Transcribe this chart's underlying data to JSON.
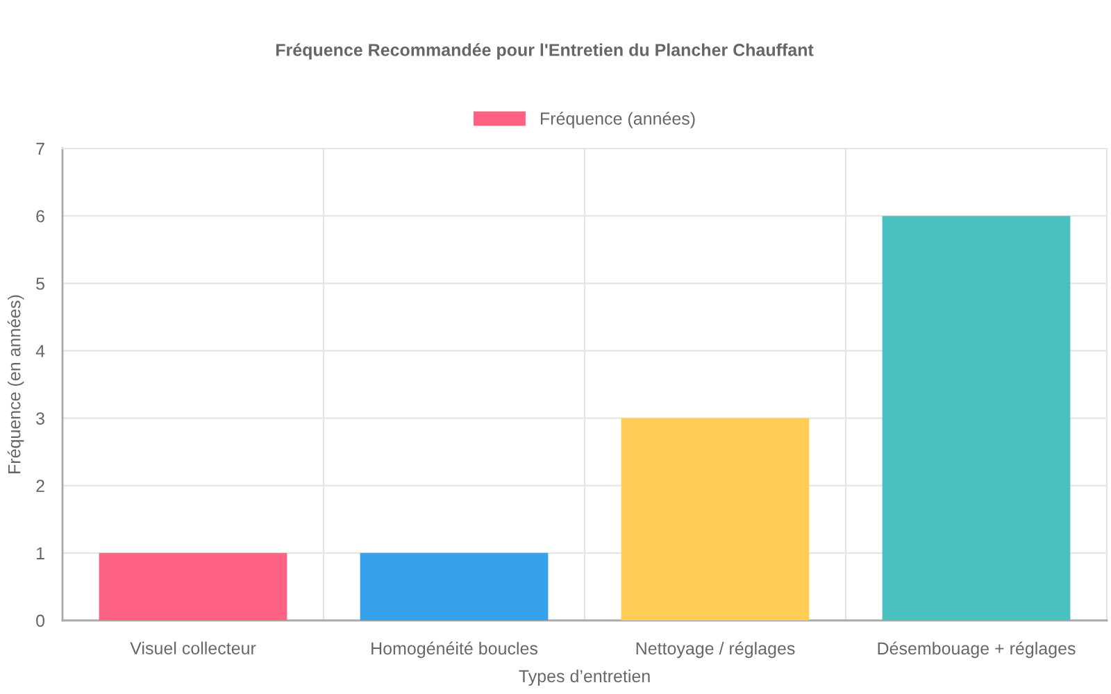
{
  "chart_data": {
    "type": "bar",
    "title": "Fréquence Recommandée pour l'Entretien du Plancher Chauffant",
    "xlabel": "Types d’entretien",
    "ylabel": "Fréquence (en années)",
    "categories": [
      "Visuel collecteur",
      "Homogénéité boucles",
      "Nettoyage / réglages",
      "Désembouage + réglages"
    ],
    "series": [
      {
        "name": "Fréquence (années)",
        "values": [
          1,
          1,
          3,
          6
        ],
        "colors": [
          "#ff6384",
          "#36a2eb",
          "#ffcd56",
          "#4bc0c0"
        ]
      }
    ],
    "ylim": [
      0,
      7
    ],
    "yticks": [
      0,
      1,
      2,
      3,
      4,
      5,
      6,
      7
    ],
    "grid": true,
    "legend": "top"
  }
}
